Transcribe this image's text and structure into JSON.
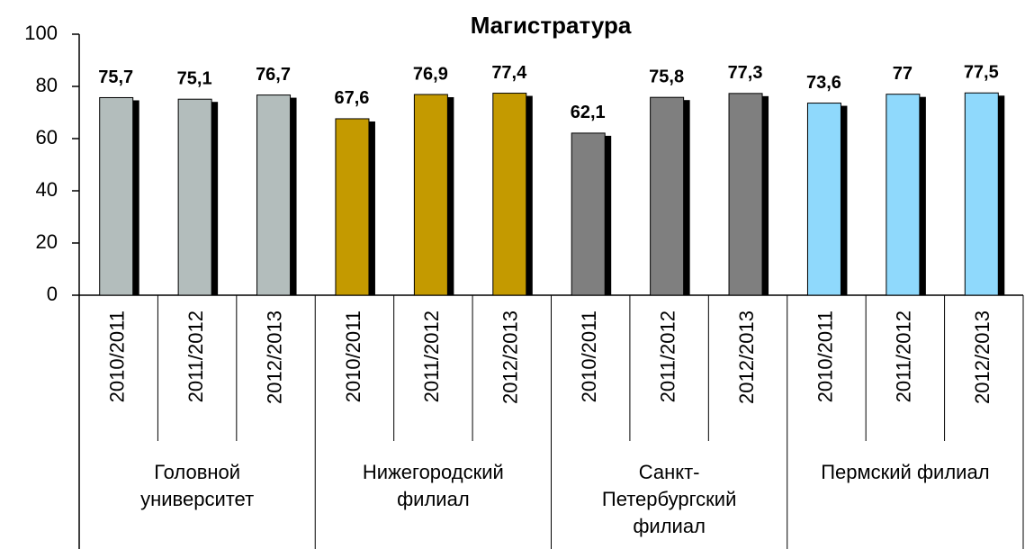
{
  "chart_data": {
    "type": "bar",
    "title": "Магистратура",
    "groups": [
      {
        "name": "Головной университет",
        "color": "#b3bdbc",
        "categories": [
          "2010/2011",
          "2011/2012",
          "2012/2013"
        ],
        "values": [
          75.7,
          75.1,
          76.7
        ],
        "value_labels": [
          "75,7",
          "75,1",
          "76,7"
        ]
      },
      {
        "name": "Нижегородский филиал",
        "color": "#c49a00",
        "categories": [
          "2010/2011",
          "2011/2012",
          "2012/2013"
        ],
        "values": [
          67.6,
          76.9,
          77.4
        ],
        "value_labels": [
          "67,6",
          "76,9",
          "77,4"
        ]
      },
      {
        "name": "Санкт-Петербургский филиал",
        "color": "#7f7f7f",
        "categories": [
          "2010/2011",
          "2011/2012",
          "2012/2013"
        ],
        "values": [
          62.1,
          75.8,
          77.3
        ],
        "value_labels": [
          "62,1",
          "75,8",
          "77,3"
        ]
      },
      {
        "name": "Пермский филиал",
        "color": "#8fd9fc",
        "categories": [
          "2010/2011",
          "2011/2012",
          "2012/2013"
        ],
        "values": [
          73.6,
          77,
          77.5
        ],
        "value_labels": [
          "73,6",
          "77",
          "77,5"
        ]
      }
    ],
    "ylim": [
      0,
      100
    ],
    "yticks": [
      0,
      20,
      40,
      60,
      80,
      100
    ],
    "grid": false
  }
}
